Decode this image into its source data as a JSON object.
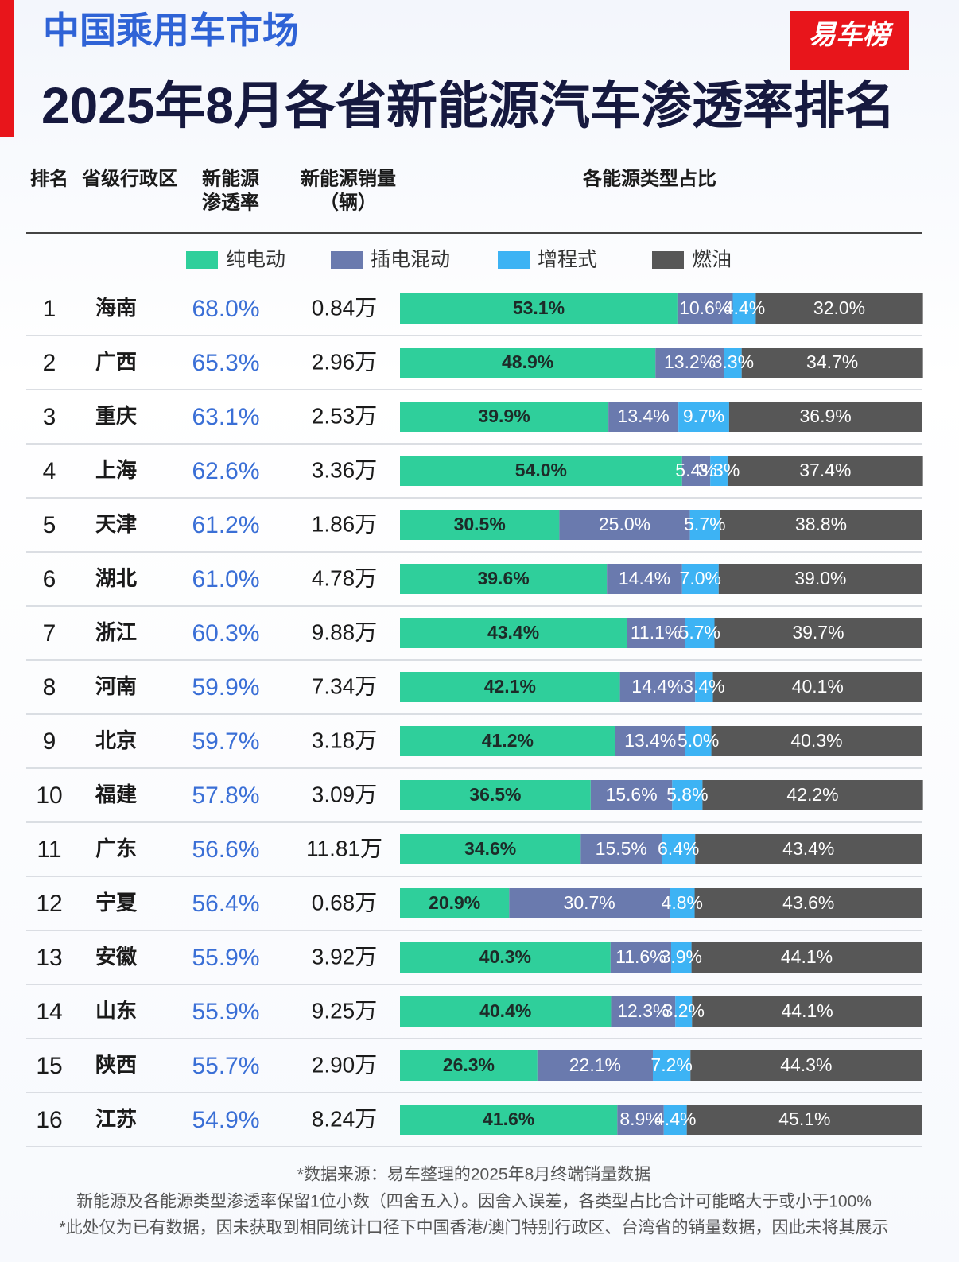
{
  "header": {
    "subtitle": "中国乘用车市场",
    "title": "2025年8月各省新能源汽车渗透率排名",
    "logo": "易车榜"
  },
  "columns": {
    "rank": "排名",
    "province": "省级行政区",
    "rate": [
      "新能源",
      "渗透率"
    ],
    "sales": [
      "新能源销量",
      "（辆）"
    ],
    "share": "各能源类型占比"
  },
  "table": {
    "rows": [
      [
        "1",
        "海南",
        "68.0%",
        "0.84万"
      ],
      [
        "2",
        "广西",
        "65.3%",
        "2.96万"
      ],
      [
        "3",
        "重庆",
        "63.1%",
        "2.53万"
      ],
      [
        "4",
        "上海",
        "62.6%",
        "3.36万"
      ],
      [
        "5",
        "天津",
        "61.2%",
        "1.86万"
      ],
      [
        "6",
        "湖北",
        "61.0%",
        "4.78万"
      ],
      [
        "7",
        "浙江",
        "60.3%",
        "9.88万"
      ],
      [
        "8",
        "河南",
        "59.9%",
        "7.34万"
      ],
      [
        "9",
        "北京",
        "59.7%",
        "3.18万"
      ],
      [
        "10",
        "福建",
        "57.8%",
        "3.09万"
      ],
      [
        "11",
        "广东",
        "56.6%",
        "11.81万"
      ],
      [
        "12",
        "宁夏",
        "56.4%",
        "0.68万"
      ],
      [
        "13",
        "安徽",
        "55.9%",
        "3.92万"
      ],
      [
        "14",
        "山东",
        "55.9%",
        "9.25万"
      ],
      [
        "15",
        "陕西",
        "55.7%",
        "2.90万"
      ],
      [
        "16",
        "江苏",
        "54.9%",
        "8.24万"
      ]
    ]
  },
  "chart_data": {
    "type": "stacked-bar",
    "orientation": "horizontal",
    "xlim": [
      0,
      100
    ],
    "series": [
      {
        "name": "纯电动",
        "color": "#2fcf9b",
        "label_color": "#1d2b28",
        "values": [
          53.1,
          48.9,
          39.9,
          54.0,
          30.5,
          39.6,
          43.4,
          42.1,
          41.2,
          36.5,
          34.6,
          20.9,
          40.3,
          40.4,
          26.3,
          41.6
        ],
        "value_labels": [
          "53.1%",
          "48.9%",
          "39.9%",
          "54.0%",
          "30.5%",
          "39.6%",
          "43.4%",
          "42.1%",
          "41.2%",
          "36.5%",
          "34.6%",
          "20.9%",
          "40.3%",
          "40.4%",
          "26.3%",
          "41.6%"
        ]
      },
      {
        "name": "插电混动",
        "color": "#6a7aae",
        "label_color": "#ffffff",
        "values": [
          10.6,
          13.2,
          13.4,
          5.4,
          25.0,
          14.4,
          11.1,
          14.4,
          13.4,
          15.6,
          15.5,
          30.7,
          11.6,
          12.3,
          22.1,
          8.9
        ],
        "value_labels": [
          "10.6%",
          "13.2%",
          "13.4%",
          "5.4%",
          "25.0%",
          "14.4%",
          "11.1%",
          "14.4%",
          "13.4%",
          "15.6%",
          "15.5%",
          "30.7%",
          "11.6%",
          "12.3%",
          "22.1%",
          "8.9%"
        ]
      },
      {
        "name": "增程式",
        "color": "#3db3f4",
        "label_color": "#ffffff",
        "values": [
          4.4,
          3.3,
          9.7,
          3.3,
          5.7,
          7.0,
          5.7,
          3.4,
          5.0,
          5.8,
          6.4,
          4.8,
          3.9,
          3.2,
          7.2,
          4.4
        ],
        "value_labels": [
          "4.4%",
          "3.3%",
          "9.7%",
          "3.3%",
          "5.7%",
          "7.0%",
          "5.7%",
          "3.4%",
          "5.0%",
          "5.8%",
          "6.4%",
          "4.8%",
          "3.9%",
          "3.2%",
          "7.2%",
          "4.4%"
        ]
      },
      {
        "name": "燃油",
        "color": "#575757",
        "label_color": "#ffffff",
        "values": [
          32.0,
          34.7,
          36.9,
          37.4,
          38.8,
          39.0,
          39.7,
          40.1,
          40.3,
          42.2,
          43.4,
          43.6,
          44.1,
          44.1,
          44.3,
          45.1
        ],
        "value_labels": [
          "32.0%",
          "34.7%",
          "36.9%",
          "37.4%",
          "38.8%",
          "39.0%",
          "39.7%",
          "40.1%",
          "40.3%",
          "42.2%",
          "43.4%",
          "43.6%",
          "44.1%",
          "44.1%",
          "44.3%",
          "45.1%"
        ]
      }
    ]
  },
  "footnotes": [
    "*数据来源：易车整理的2025年8月终端销量数据",
    "新能源及各能源类型渗透率保留1位小数（四舍五入）。因舍入误差，各类型占比合计可能略大于或小于100%",
    "*此处仅为已有数据，因未获取到相同统计口径下中国香港/澳门特别行政区、台湾省的销量数据，因此未将其展示"
  ]
}
